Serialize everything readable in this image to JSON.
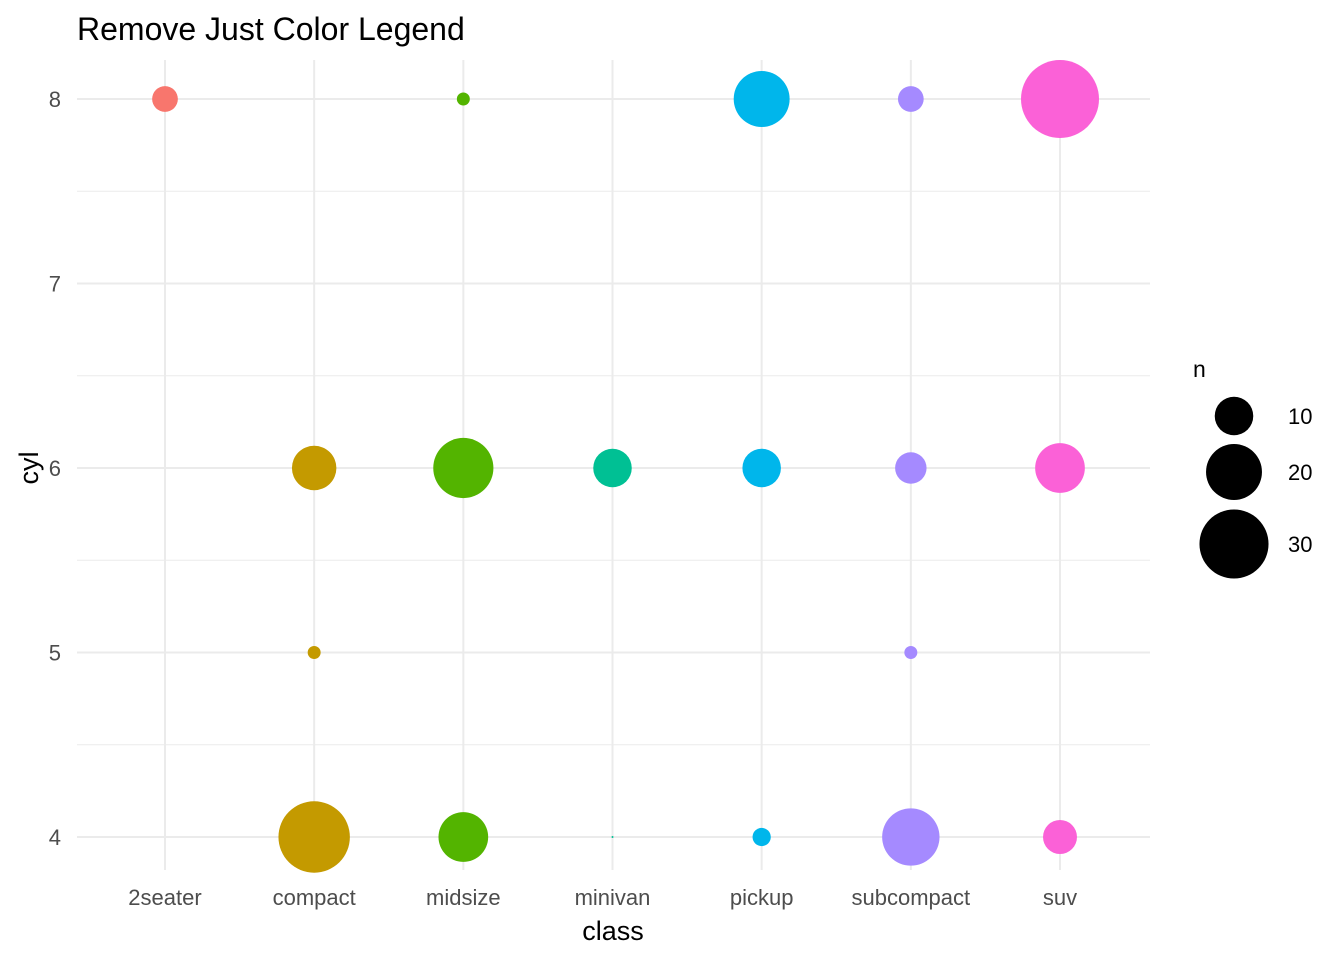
{
  "chart_data": {
    "type": "scatter",
    "title": "Remove Just Color Legend",
    "xlabel": "class",
    "ylabel": "cyl",
    "categories": [
      "2seater",
      "compact",
      "midsize",
      "minivan",
      "pickup",
      "subcompact",
      "suv"
    ],
    "y_ticks": [
      4,
      5,
      6,
      7,
      8
    ],
    "ylim": [
      3.84,
      8.16
    ],
    "grid": true,
    "colors": {
      "2seater": "#F8766D",
      "compact": "#C49A00",
      "midsize": "#53B400",
      "minivan": "#00C094",
      "pickup": "#00B6EB",
      "subcompact": "#A58AFF",
      "suv": "#FB61D7"
    },
    "points": [
      {
        "class": "2seater",
        "cyl": 8,
        "n": 5
      },
      {
        "class": "compact",
        "cyl": 4,
        "n": 32
      },
      {
        "class": "compact",
        "cyl": 5,
        "n": 2
      },
      {
        "class": "compact",
        "cyl": 6,
        "n": 13
      },
      {
        "class": "midsize",
        "cyl": 4,
        "n": 16
      },
      {
        "class": "midsize",
        "cyl": 6,
        "n": 23
      },
      {
        "class": "midsize",
        "cyl": 8,
        "n": 2
      },
      {
        "class": "minivan",
        "cyl": 4,
        "n": 1
      },
      {
        "class": "minivan",
        "cyl": 6,
        "n": 10
      },
      {
        "class": "pickup",
        "cyl": 4,
        "n": 3
      },
      {
        "class": "pickup",
        "cyl": 6,
        "n": 10
      },
      {
        "class": "pickup",
        "cyl": 8,
        "n": 20
      },
      {
        "class": "subcompact",
        "cyl": 4,
        "n": 21
      },
      {
        "class": "subcompact",
        "cyl": 5,
        "n": 2
      },
      {
        "class": "subcompact",
        "cyl": 6,
        "n": 7
      },
      {
        "class": "subcompact",
        "cyl": 8,
        "n": 5
      },
      {
        "class": "suv",
        "cyl": 4,
        "n": 8
      },
      {
        "class": "suv",
        "cyl": 6,
        "n": 16
      },
      {
        "class": "suv",
        "cyl": 8,
        "n": 38
      }
    ],
    "size_legend": {
      "title": "n",
      "position": "right",
      "entries": [
        {
          "value": 10,
          "label": "10"
        },
        {
          "value": 20,
          "label": "20"
        },
        {
          "value": 30,
          "label": "30"
        }
      ]
    }
  }
}
